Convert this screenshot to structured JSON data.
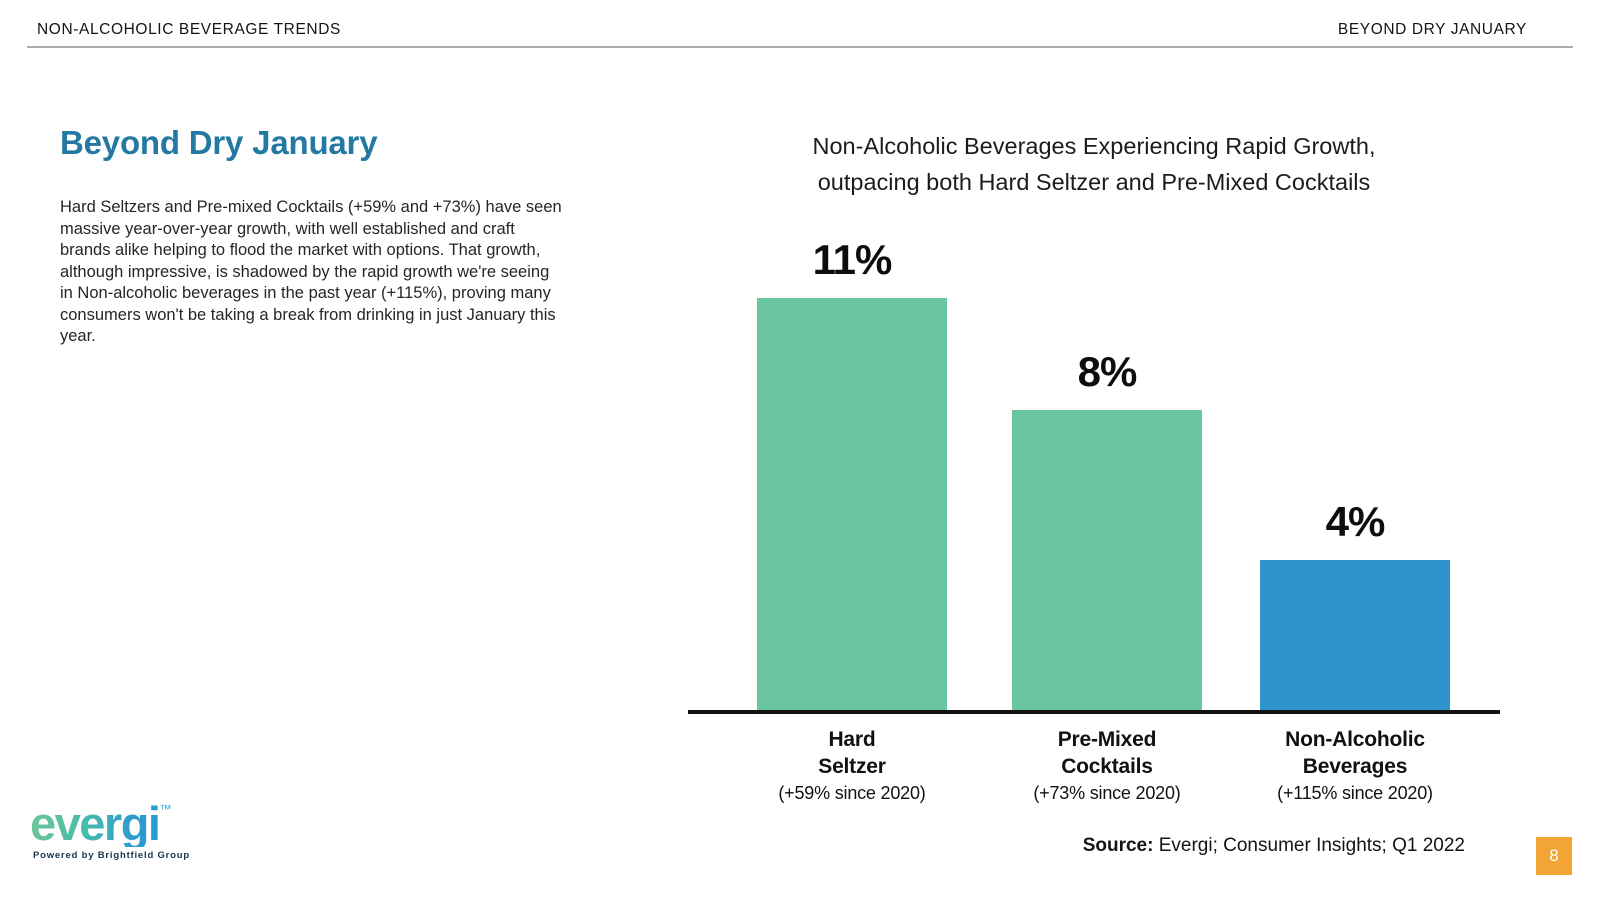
{
  "header": {
    "left_label": "NON-ALCOHOLIC BEVERAGE TRENDS",
    "right_label": "BEYOND DRY JANUARY"
  },
  "main": {
    "title": "Beyond Dry January",
    "paragraph": "Hard Seltzers and Pre-mixed Cocktails (+59% and +73%) have seen massive year-over-year growth, with well established and craft brands alike helping to flood the market with options. That growth, although impressive, is shadowed by the rapid growth we're seeing in Non-alcoholic beverages in the past year (+115%), proving many consumers won't be taking a break from drinking in just January this year."
  },
  "chart_data": {
    "type": "bar",
    "title": "Non-Alcoholic Beverages Experiencing Rapid Growth, outpacing both Hard Seltzer and Pre-Mixed Cocktails",
    "title_lines": [
      "Non-Alcoholic Beverages Experiencing Rapid Growth,",
      "outpacing both Hard Seltzer and Pre-Mixed Cocktails"
    ],
    "categories": [
      "Hard Seltzer",
      "Pre-Mixed Cocktails",
      "Non-Alcoholic Beverages"
    ],
    "category_lines": [
      [
        "Hard",
        "Seltzer"
      ],
      [
        "Pre-Mixed",
        "Cocktails"
      ],
      [
        "Non-Alcoholic",
        "Beverages"
      ]
    ],
    "category_sublabels": [
      "(+59% since 2020)",
      "(+73% since 2020)",
      "(+115% since 2020)"
    ],
    "values": [
      11,
      8,
      4
    ],
    "value_labels": [
      "11%",
      "8%",
      "4%"
    ],
    "bar_colors": [
      "#6AC5A0",
      "#6AC5A0",
      "#2D95CB"
    ],
    "ylim": [
      0,
      11
    ],
    "xlabel": "",
    "ylabel": "",
    "grid": false,
    "legend": false,
    "axis_color": "#111111"
  },
  "footer": {
    "logo_text": "evergi",
    "logo_tm": "™",
    "logo_caption": "Powered by Brightfield Group",
    "source_label": "Source:",
    "source_text": " Evergi; Consumer Insights; Q1 2022",
    "page_number": "8"
  },
  "colors": {
    "title_accent": "#2379A1",
    "bar_green": "#6AC5A0",
    "bar_blue": "#2D95CB",
    "page_box_orange": "#F2A434",
    "header_rule_gray": "#ABABAB",
    "logo_gradient_start": "#6FC599",
    "logo_gradient_mid": "#45BAAC",
    "logo_gradient_end": "#2D9BCE"
  }
}
